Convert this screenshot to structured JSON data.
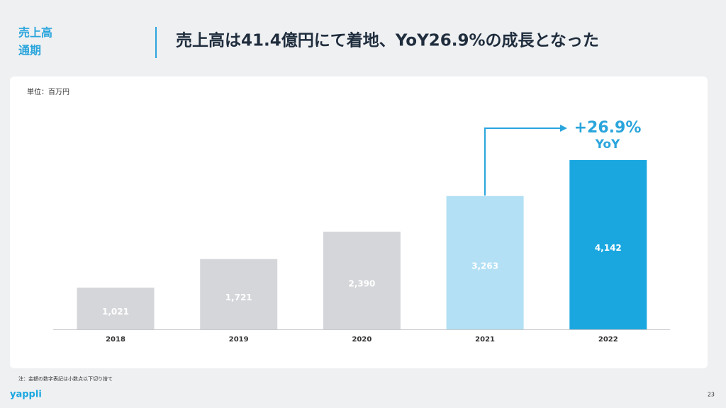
{
  "section_label": [
    "売上高",
    "通期"
  ],
  "unit_note": "単位：百万円",
  "footnote": "注：金額の数字表記は小数点以下切り捨て",
  "logo": "yappli",
  "page_number": 23,
  "chart_data": {
    "type": "bar",
    "title": "売上高は41.4億円にて着地、YoY26.9%の成長となった",
    "categories": [
      "2018",
      "2019",
      "2020",
      "2021",
      "2022"
    ],
    "values": [
      1021,
      1721,
      2390,
      3263,
      4142
    ],
    "value_labels": [
      "1,021",
      "1,721",
      "2,390",
      "3,263",
      "4,142"
    ],
    "colors": [
      "#d5d6da",
      "#d5d6da",
      "#d5d6da",
      "#b3e0f4",
      "#1aa7e0"
    ],
    "annotation": [
      "+26.9%",
      "YoY"
    ]
  }
}
